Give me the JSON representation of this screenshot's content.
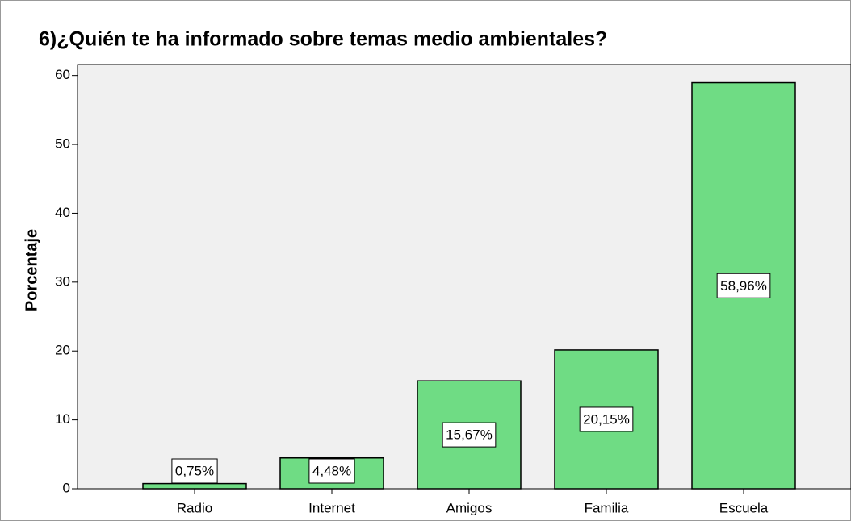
{
  "chart_data": {
    "type": "bar",
    "title": "6)¿Quién te ha informado sobre temas medio ambientales?",
    "y_label": "Porcentaje",
    "categories": [
      "Radio",
      "Internet",
      "Amigos",
      "Familia",
      "Escuela"
    ],
    "values": [
      0.75,
      4.48,
      15.67,
      20.15,
      58.96
    ],
    "value_labels": [
      "0,75%",
      "4,48%",
      "15,67%",
      "20,15%",
      "58,96%"
    ],
    "color": "#6fdc84",
    "ylim": [
      0,
      61.6
    ],
    "yticks": [
      0,
      10,
      20,
      30,
      40,
      50,
      60
    ],
    "grid": false
  }
}
